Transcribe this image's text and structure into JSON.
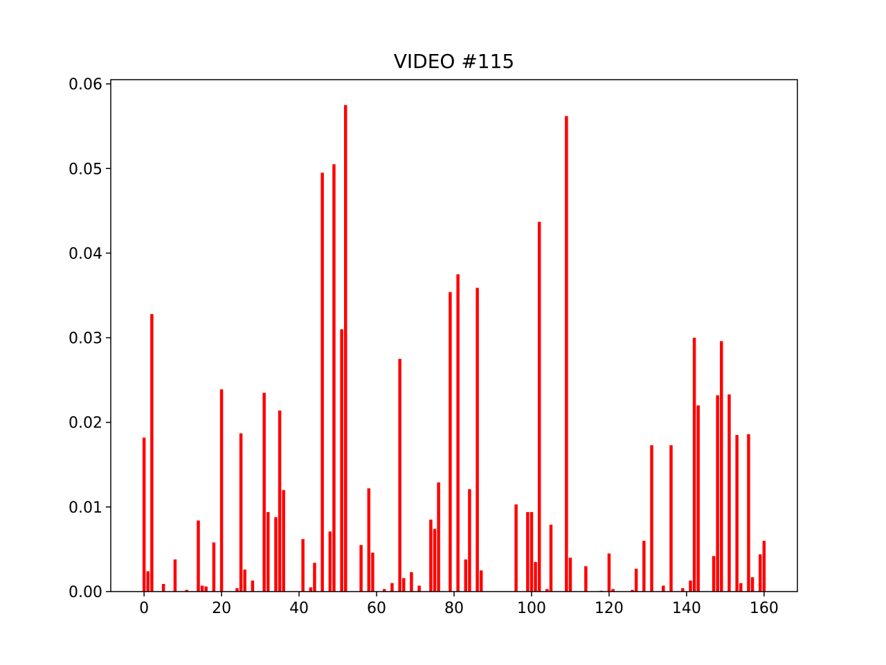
{
  "chart_data": {
    "type": "bar",
    "title": "VIDEO #115",
    "xlabel": "",
    "ylabel": "",
    "bar_color": "#ff0000",
    "xlim": [
      -8.6,
      168.6
    ],
    "ylim": [
      0,
      0.0605
    ],
    "xticks": [
      0,
      20,
      40,
      60,
      80,
      100,
      120,
      140,
      160
    ],
    "xtick_labels": [
      "0",
      "20",
      "40",
      "60",
      "80",
      "100",
      "120",
      "140",
      "160"
    ],
    "yticks": [
      0,
      0.01,
      0.02,
      0.03,
      0.04,
      0.05,
      0.06
    ],
    "ytick_labels": [
      "0.00",
      "0.01",
      "0.02",
      "0.03",
      "0.04",
      "0.05",
      "0.06"
    ],
    "grid": false,
    "legend": "none",
    "x": [
      0,
      1,
      2,
      5,
      8,
      11,
      14,
      15,
      16,
      18,
      20,
      24,
      25,
      26,
      28,
      31,
      32,
      34,
      35,
      36,
      41,
      43,
      44,
      46,
      48,
      49,
      51,
      52,
      56,
      58,
      59,
      62,
      64,
      66,
      67,
      69,
      71,
      74,
      75,
      76,
      79,
      81,
      83,
      84,
      86,
      87,
      96,
      99,
      100,
      101,
      102,
      104,
      105,
      109,
      110,
      114,
      118,
      120,
      121,
      126,
      127,
      129,
      131,
      134,
      136,
      139,
      141,
      142,
      143,
      147,
      148,
      149,
      151,
      153,
      154,
      156,
      157,
      159,
      160
    ],
    "values": [
      0.0182,
      0.0024,
      0.0328,
      0.0009,
      0.0038,
      0.0002,
      0.0084,
      0.0007,
      0.0006,
      0.0058,
      0.0239,
      0.0004,
      0.0187,
      0.0026,
      0.0013,
      0.0235,
      0.0094,
      0.0088,
      0.0214,
      0.012,
      0.0062,
      0.0005,
      0.0034,
      0.0495,
      0.0071,
      0.0505,
      0.031,
      0.0575,
      0.0055,
      0.0122,
      0.0046,
      0.0003,
      0.001,
      0.0275,
      0.0016,
      0.0023,
      0.0007,
      0.0085,
      0.0074,
      0.0129,
      0.0354,
      0.0375,
      0.0038,
      0.0121,
      0.0359,
      0.0025,
      0.0103,
      0.0094,
      0.0094,
      0.0035,
      0.0437,
      0.0003,
      0.0079,
      0.0562,
      0.004,
      0.003,
      0.0001,
      0.0045,
      0.0003,
      0.0002,
      0.0027,
      0.006,
      0.0173,
      0.0007,
      0.0173,
      0.0004,
      0.0013,
      0.03,
      0.022,
      0.0042,
      0.0232,
      0.0296,
      0.0233,
      0.0185,
      0.001,
      0.0186,
      0.0017,
      0.0044,
      0.006
    ]
  }
}
